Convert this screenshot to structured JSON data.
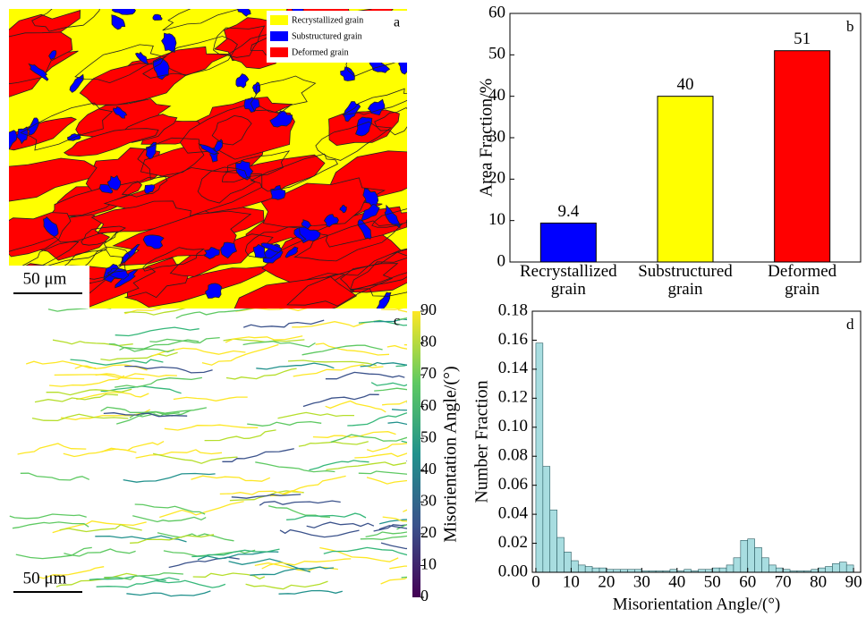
{
  "map_a": {
    "panel": "a",
    "scale_bar": "50 μm",
    "legend": [
      {
        "label": "Recrystallized grain",
        "color": "#ffff00"
      },
      {
        "label": "Substructured grain",
        "color": "#0000ff"
      },
      {
        "label": "Deformed grain",
        "color": "#ff0000"
      }
    ]
  },
  "map_c": {
    "panel": "c",
    "scale_bar": "50 μm",
    "colorbar": {
      "label": "Misorientation Angle/(°)",
      "lim": [
        0,
        90
      ],
      "ticks": [
        0,
        10,
        20,
        30,
        40,
        50,
        60,
        70,
        80,
        90
      ]
    }
  },
  "chart_data": [
    {
      "type": "bar",
      "panel": "b",
      "ylabel": "Area Fraction/%",
      "categories": [
        "Recrystallized grain",
        "Substructured grain",
        "Deformed grain"
      ],
      "values": [
        9.4,
        40,
        51
      ],
      "colors": [
        "#0000ff",
        "#ffff00",
        "#ff0000"
      ],
      "ylim": [
        0,
        60
      ],
      "yticks": [
        0,
        10,
        20,
        30,
        40,
        50,
        60
      ]
    },
    {
      "type": "histogram",
      "panel": "d",
      "xlabel": "Misorientation Angle/(°)",
      "ylabel": "Number Fraction",
      "color": "#a8dde0",
      "bins": [
        0,
        2,
        4,
        6,
        8,
        10,
        12,
        14,
        16,
        18,
        20,
        22,
        24,
        26,
        28,
        30,
        32,
        34,
        36,
        38,
        40,
        42,
        44,
        46,
        48,
        50,
        52,
        54,
        56,
        58,
        60,
        62,
        64,
        66,
        68,
        70,
        72,
        74,
        76,
        78,
        80,
        82,
        84,
        86,
        88,
        90
      ],
      "values": [
        0.158,
        0.073,
        0.043,
        0.024,
        0.014,
        0.008,
        0.005,
        0.004,
        0.003,
        0.003,
        0.002,
        0.002,
        0.002,
        0.002,
        0.002,
        0.001,
        0.001,
        0.001,
        0.001,
        0.002,
        0.001,
        0.002,
        0.001,
        0.002,
        0.002,
        0.003,
        0.003,
        0.005,
        0.01,
        0.022,
        0.023,
        0.017,
        0.01,
        0.005,
        0.003,
        0.002,
        0.001,
        0.001,
        0.001,
        0.002,
        0.003,
        0.004,
        0.006,
        0.007,
        0.005
      ],
      "xlim": [
        -1,
        92
      ],
      "xticks": [
        0,
        10,
        20,
        30,
        40,
        50,
        60,
        70,
        80,
        90
      ],
      "ylim": [
        0,
        0.18
      ],
      "yticks": [
        {
          "value": 0,
          "label": "0.00"
        },
        0.02,
        0.04,
        0.06,
        0.08,
        {
          "value": 0.1,
          "label": "0.10"
        },
        0.12,
        0.14,
        0.16,
        0.18
      ]
    }
  ]
}
